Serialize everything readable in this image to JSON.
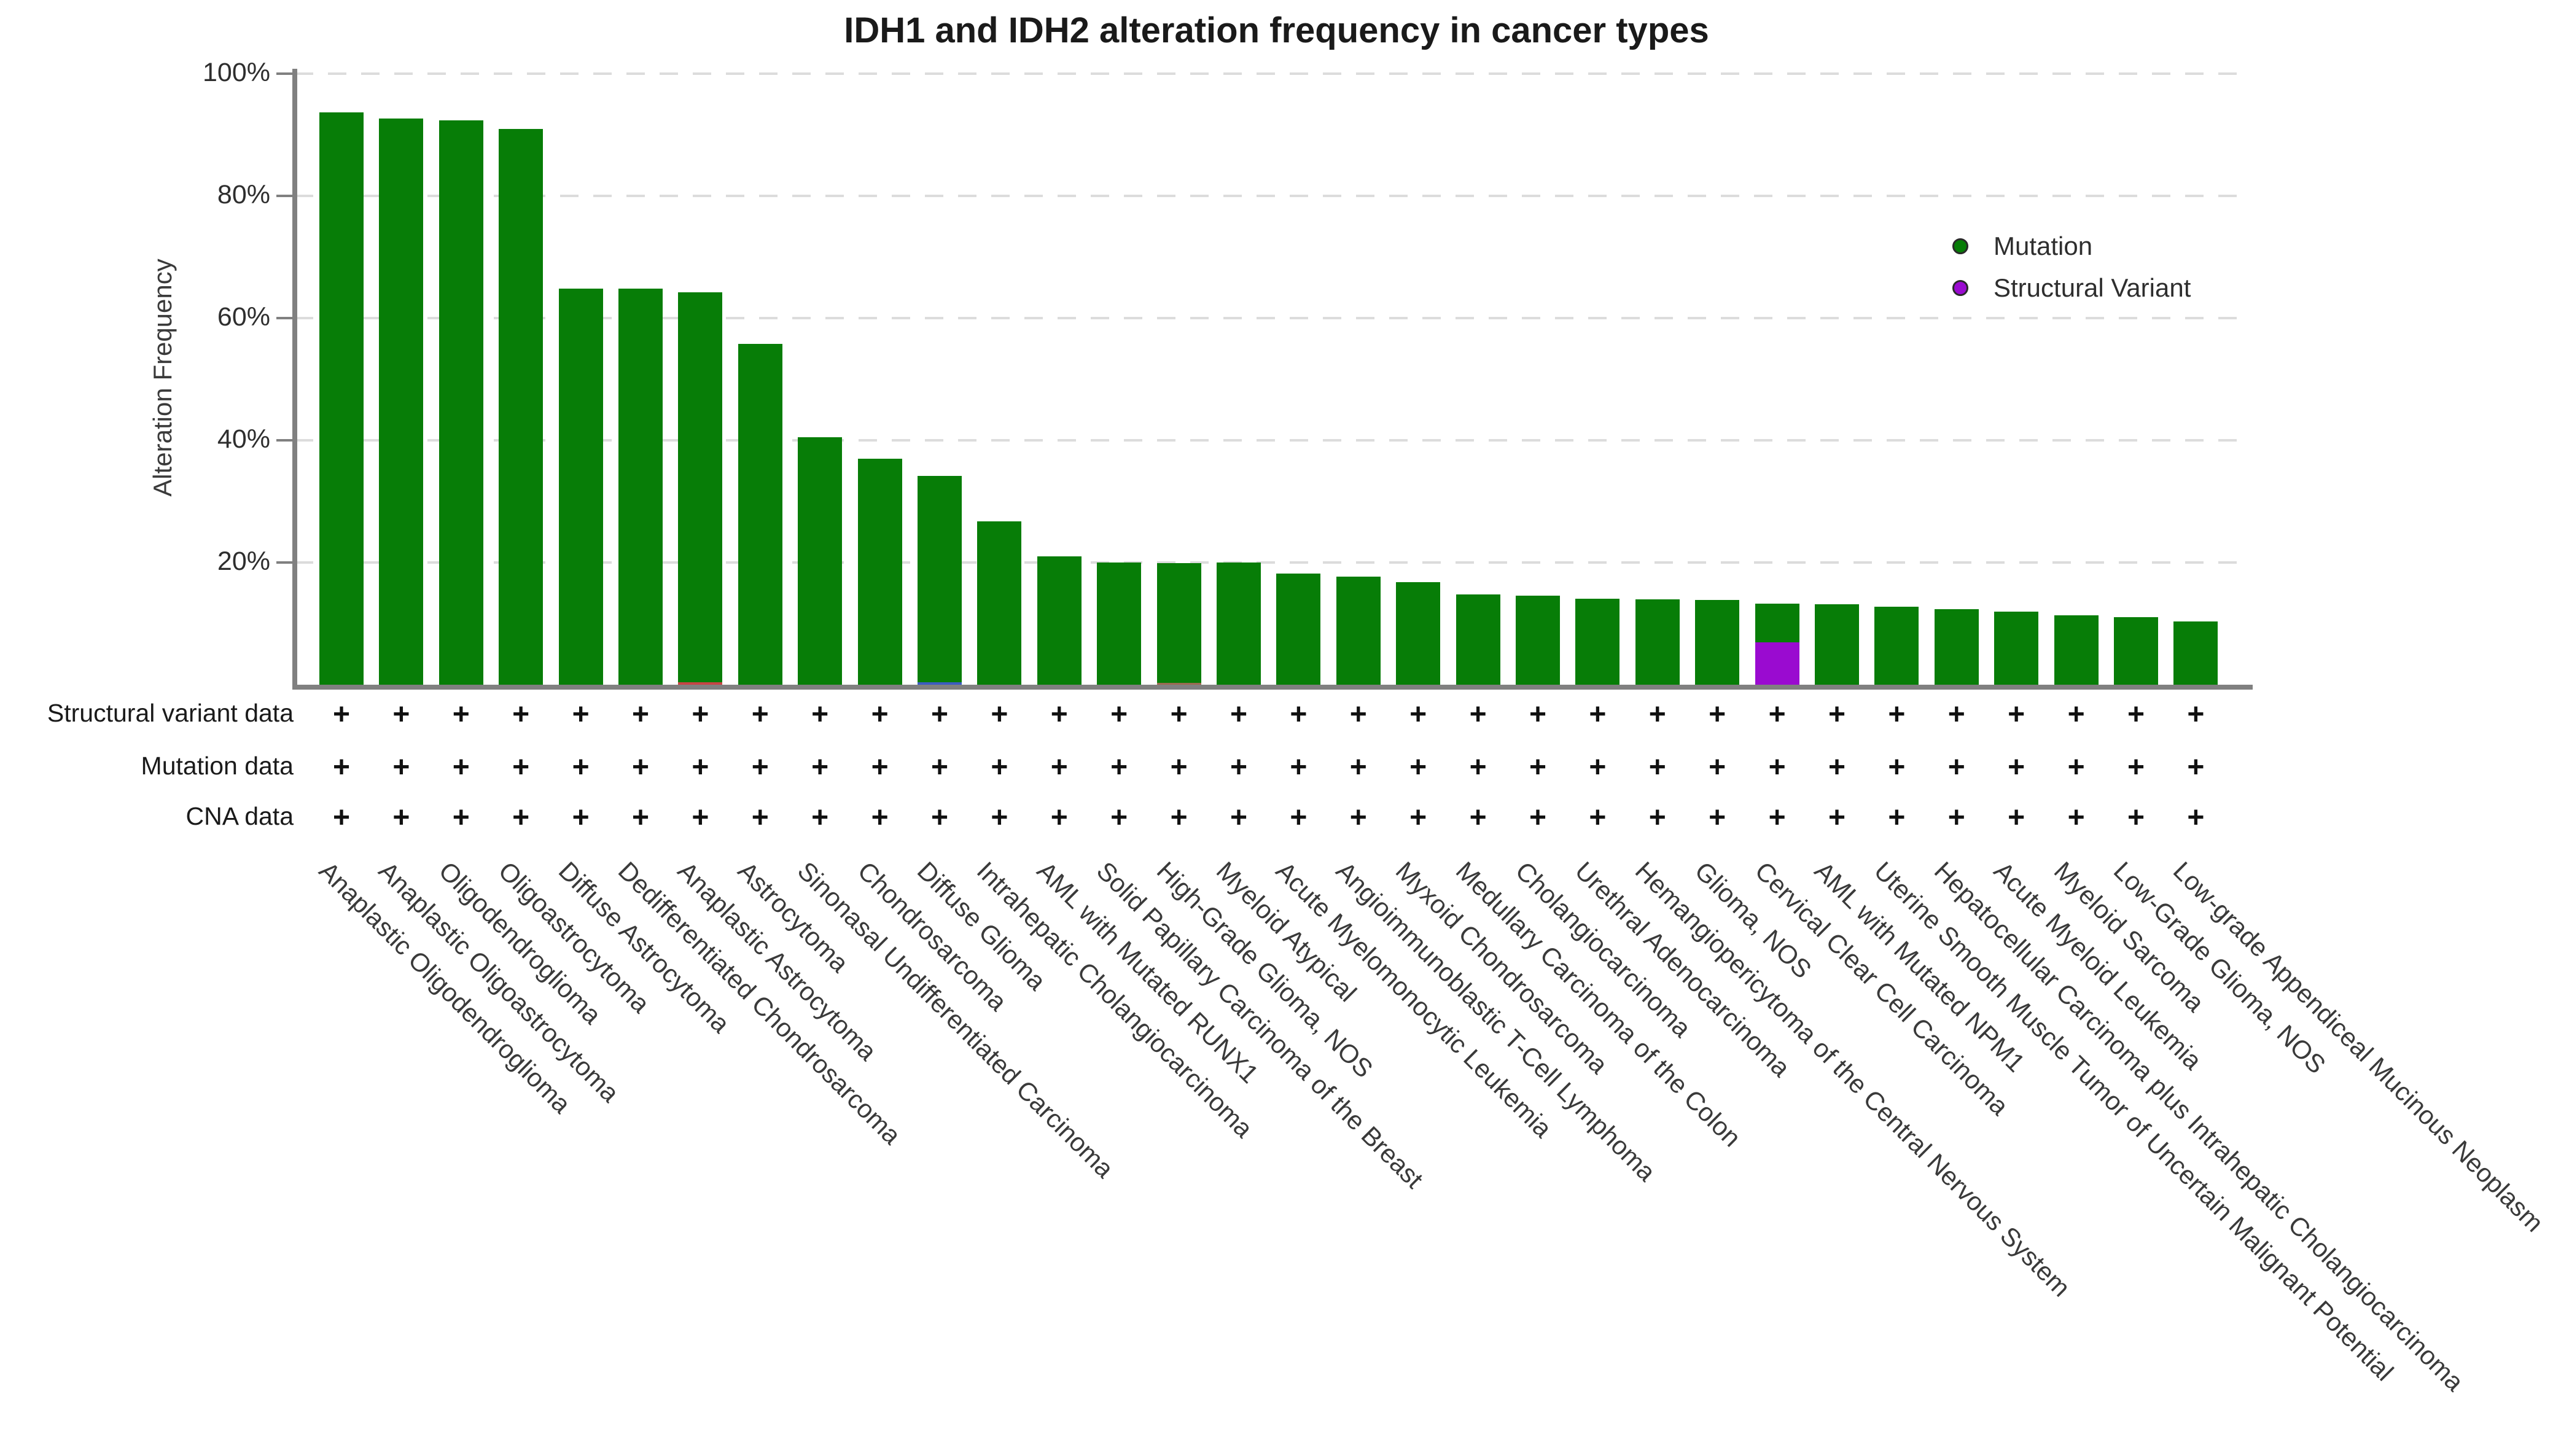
{
  "title": "IDH1 and IDH2 alteration frequency in cancer types",
  "y_axis": {
    "label": "Alteration Frequency",
    "ticks": [
      {
        "label": "100%",
        "value": 100
      },
      {
        "label": "80%",
        "value": 80
      },
      {
        "label": "60%",
        "value": 60
      },
      {
        "label": "40%",
        "value": 40
      },
      {
        "label": "20%",
        "value": 20
      }
    ]
  },
  "legend": {
    "items": [
      {
        "label": "Mutation",
        "color": "#077D07"
      },
      {
        "label": "Structural Variant",
        "color": "#9A0BD0"
      }
    ]
  },
  "data_tracks": {
    "rows": [
      {
        "label": "Structural variant data",
        "symbol": "+"
      },
      {
        "label": "Mutation data",
        "symbol": "+"
      },
      {
        "label": "CNA data",
        "symbol": "+"
      }
    ],
    "symbol_in_every_column": "+"
  },
  "colors": {
    "mutation_green": "#077D07",
    "structural_variant_purple": "#9A0BD0",
    "red_base_sliver": "#C84444",
    "blue_base_sliver": "#3C5CC0",
    "brown_base_sliver": "#9A6B50",
    "axis_gray": "#808080",
    "gridline_gray": "#DCDCDC",
    "text_dark": "#3a3a3a"
  },
  "chart_data": {
    "type": "bar",
    "stacked": true,
    "title": "IDH1 and IDH2 alteration frequency in cancer types",
    "xlabel": "",
    "ylabel": "Alteration Frequency",
    "ylim": [
      0,
      100
    ],
    "grid": "dashed horizontal gridlines at 20/40/60/80/100%",
    "legend_position": "upper right inside plot",
    "x_label_rotation_deg": 45,
    "categories": [
      "Anaplastic Oligodendroglioma",
      "Anaplastic Oligoastrocytoma",
      "Oligodendroglioma",
      "Oligoastrocytoma",
      "Diffuse Astrocytoma",
      "Dedifferentiated Chondrosarcoma",
      "Anaplastic Astrocytoma",
      "Astrocytoma",
      "Sinonasal Undifferentiated Carcinoma",
      "Chondrosarcoma",
      "Diffuse Glioma",
      "Intrahepatic Cholangiocarcinoma",
      "AML with Mutated RUNX1",
      "Solid Papillary Carcinoma of the Breast",
      "High-Grade Glioma, NOS",
      "Myeloid Atypical",
      "Acute Myelomonocytic Leukemia",
      "Angioimmunoblastic T-Cell Lymphoma",
      "Myxoid Chondrosarcoma",
      "Medullary Carcinoma of the Colon",
      "Cholangiocarcinoma",
      "Urethral Adenocarcinoma",
      "Hemangiopericytoma of the Central Nervous System",
      "Glioma, NOS",
      "Cervical Clear Cell Carcinoma",
      "AML with Mutated NPM1",
      "Uterine Smooth Muscle Tumor of Uncertain Malignant Potential",
      "Hepatocellular Carcinoma plus Intrahepatic Cholangiocarcinoma",
      "Acute Myeloid Leukemia",
      "Myeloid Sarcoma",
      "Low-Grade Glioma, NOS",
      "Low-grade Appendiceal Mucinous Neoplasm"
    ],
    "series": [
      {
        "name": "Mutation",
        "color": "#077D07",
        "values": [
          93.7,
          92.7,
          92.4,
          91.0,
          64.8,
          64.8,
          63.8,
          55.8,
          40.5,
          37.0,
          33.8,
          26.7,
          21.0,
          20.0,
          19.6,
          20.0,
          18.2,
          17.7,
          16.8,
          14.8,
          14.6,
          14.1,
          14.0,
          13.9,
          6.4,
          13.2,
          12.8,
          12.4,
          12.0,
          11.4,
          11.1,
          10.4
        ]
      },
      {
        "name": "Structural Variant",
        "color": "#9A0BD0",
        "values": [
          0,
          0,
          0,
          0,
          0,
          0,
          0,
          0,
          0,
          0,
          0,
          0,
          0,
          0,
          0,
          0,
          0,
          0,
          0,
          0,
          0,
          0,
          0,
          0,
          6.9,
          0,
          0,
          0,
          0,
          0,
          0,
          0
        ]
      }
    ],
    "base_slivers": [
      {
        "category": "Anaplastic Astrocytoma",
        "index": 6,
        "color": "#C84444",
        "value": 0.4
      },
      {
        "category": "Diffuse Glioma",
        "index": 10,
        "color": "#3C5CC0",
        "value": 0.4
      },
      {
        "category": "High-Grade Glioma, NOS",
        "index": 14,
        "color": "#9A6B50",
        "value": 0.3
      }
    ],
    "totals": [
      93.7,
      92.7,
      92.4,
      91.0,
      64.8,
      64.8,
      64.2,
      55.8,
      40.5,
      37.0,
      34.2,
      26.7,
      21.0,
      20.0,
      19.9,
      20.0,
      18.2,
      17.7,
      16.8,
      14.8,
      14.6,
      14.1,
      14.0,
      13.9,
      13.3,
      13.2,
      12.8,
      12.4,
      12.0,
      11.4,
      11.1,
      10.4
    ]
  }
}
